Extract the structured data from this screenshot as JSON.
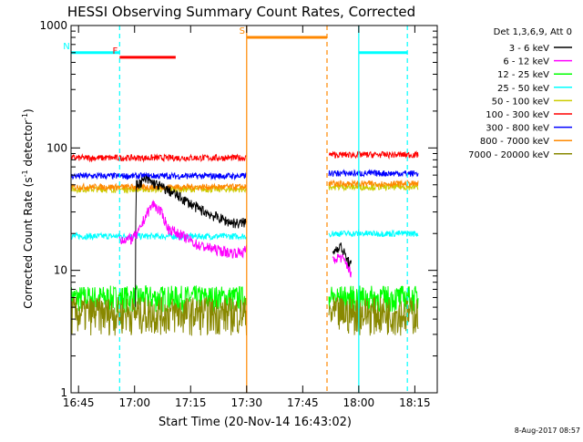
{
  "chart_data": {
    "type": "line",
    "title": "HESSI Observing Summary Count Rates, Corrected",
    "xlabel": "Start Time (20-Nov-14 16:43:02)",
    "ylabel_main": "Corrected Count Rate (s",
    "ylabel_sup1": "-1",
    "ylabel_mid": " detector",
    "ylabel_sup2": "-1",
    "ylabel_end": ")",
    "y_scale": "log",
    "ylim": [
      1,
      1000
    ],
    "x_range_minutes": [
      0,
      98
    ],
    "x_ticks": [
      {
        "label": "16:45",
        "t": 2
      },
      {
        "label": "17:00",
        "t": 17
      },
      {
        "label": "17:15",
        "t": 32
      },
      {
        "label": "17:30",
        "t": 47
      },
      {
        "label": "17:45",
        "t": 62
      },
      {
        "label": "18:00",
        "t": 77
      },
      {
        "label": "18:15",
        "t": 92
      }
    ],
    "y_ticks": [
      {
        "label": "1",
        "v": 1
      },
      {
        "label": "10",
        "v": 10
      },
      {
        "label": "100",
        "v": 100
      },
      {
        "label": "1000",
        "v": 1000
      }
    ],
    "legend_title": "Det 1,3,6,9, Att 0",
    "legend_position": "right",
    "series": [
      {
        "name": "3 - 6 keV",
        "color": "#000000"
      },
      {
        "name": "6 - 12 keV",
        "color": "#ff00ff"
      },
      {
        "name": "12 - 25 keV",
        "color": "#00ff00"
      },
      {
        "name": "25 - 50 keV",
        "color": "#00ffff"
      },
      {
        "name": "50 - 100 keV",
        "color": "#cccc00"
      },
      {
        "name": "100 - 300 keV",
        "color": "#ff0000"
      },
      {
        "name": "300 - 800 keV",
        "color": "#0000ff"
      },
      {
        "name": "800 - 7000 keV",
        "color": "#ff8800"
      },
      {
        "name": "7000 - 20000 keV",
        "color": "#888800"
      }
    ],
    "segments": [
      {
        "t0": 0,
        "t1": 47,
        "levels": [
          null,
          null,
          6,
          19,
          46,
          83,
          59,
          48,
          4.5
        ]
      },
      {
        "t0": 69,
        "t1": 93,
        "levels": [
          null,
          null,
          6,
          20,
          48,
          88,
          62,
          51,
          4.5
        ]
      }
    ],
    "black_curve": [
      [
        17.2,
        5
      ],
      [
        17.5,
        50
      ],
      [
        20,
        55
      ],
      [
        23,
        50
      ],
      [
        26,
        45
      ],
      [
        30,
        38
      ],
      [
        34,
        32
      ],
      [
        38,
        28
      ],
      [
        42,
        25
      ],
      [
        45,
        24
      ],
      [
        47,
        25
      ]
    ],
    "magenta_curve": [
      [
        13,
        18
      ],
      [
        16,
        18
      ],
      [
        18,
        20
      ],
      [
        20,
        28
      ],
      [
        22,
        35
      ],
      [
        24,
        30
      ],
      [
        26,
        22
      ],
      [
        30,
        19
      ],
      [
        34,
        16
      ],
      [
        38,
        15
      ],
      [
        42,
        14
      ],
      [
        46,
        14
      ],
      [
        47,
        15
      ]
    ],
    "magenta_curve_late": [
      [
        70,
        12
      ],
      [
        72,
        13
      ],
      [
        74,
        11
      ],
      [
        75,
        9
      ]
    ],
    "black_curve_late": [
      [
        70,
        14
      ],
      [
        72,
        16
      ],
      [
        74,
        12
      ],
      [
        75,
        11
      ]
    ],
    "flag_bars": [
      {
        "label": "N",
        "color": "#00ffff",
        "t0": 0,
        "t1": 13,
        "v": 600
      },
      {
        "label": "F",
        "color": "#ff0000",
        "t0": 13,
        "t1": 28,
        "v": 550
      },
      {
        "label": "S",
        "color": "#ff8800",
        "t0": 47,
        "t1": 68.5,
        "v": 800
      },
      {
        "label": "",
        "color": "#00ffff",
        "t0": 77,
        "t1": 90,
        "v": 600
      }
    ],
    "vertical_markers": [
      {
        "t": 13,
        "color": "#00ffff",
        "dashed": true
      },
      {
        "t": 47,
        "color": "#ff8800",
        "dashed": false
      },
      {
        "t": 68.5,
        "color": "#ff8800",
        "dashed": true
      },
      {
        "t": 77,
        "color": "#00ffff",
        "dashed": false
      },
      {
        "t": 90,
        "color": "#00ffff",
        "dashed": true
      }
    ],
    "timestamp": "8-Aug-2017 08:57"
  }
}
